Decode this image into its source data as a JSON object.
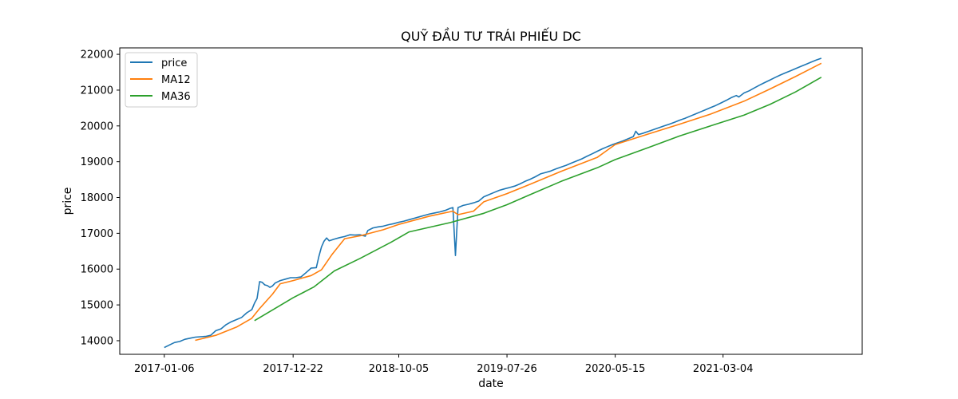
{
  "chart_data": {
    "type": "line",
    "title": "QUỸ ĐẦU TƯ TRÁI PHIẾU DC",
    "xlabel": "date",
    "ylabel": "price",
    "x_ticks": [
      "2017-01-06",
      "2017-12-22",
      "2018-10-05",
      "2019-07-26",
      "2020-05-15",
      "2021-03-04"
    ],
    "y_ticks": [
      14000,
      15000,
      16000,
      17000,
      18000,
      19000,
      20000,
      21000,
      22000
    ],
    "xlim": [
      "2016-09-07",
      "2022-03-17"
    ],
    "ylim": [
      13620,
      22180
    ],
    "legend_position": "upper-left",
    "series": [
      {
        "name": "price",
        "color": "#1f77b4",
        "points": [
          [
            "2017-01-06",
            13810
          ],
          [
            "2017-01-20",
            13880
          ],
          [
            "2017-02-03",
            13950
          ],
          [
            "2017-02-17",
            13980
          ],
          [
            "2017-03-03",
            14040
          ],
          [
            "2017-03-17",
            14070
          ],
          [
            "2017-03-31",
            14100
          ],
          [
            "2017-04-14",
            14110
          ],
          [
            "2017-04-28",
            14120
          ],
          [
            "2017-05-12",
            14150
          ],
          [
            "2017-05-26",
            14280
          ],
          [
            "2017-06-09",
            14330
          ],
          [
            "2017-06-23",
            14450
          ],
          [
            "2017-07-07",
            14530
          ],
          [
            "2017-07-21",
            14590
          ],
          [
            "2017-08-04",
            14650
          ],
          [
            "2017-08-18",
            14780
          ],
          [
            "2017-09-01",
            14870
          ],
          [
            "2017-09-08",
            15050
          ],
          [
            "2017-09-15",
            15180
          ],
          [
            "2017-09-22",
            15650
          ],
          [
            "2017-09-29",
            15630
          ],
          [
            "2017-10-06",
            15560
          ],
          [
            "2017-10-13",
            15540
          ],
          [
            "2017-10-20",
            15490
          ],
          [
            "2017-10-27",
            15530
          ],
          [
            "2017-11-03",
            15610
          ],
          [
            "2017-11-17",
            15680
          ],
          [
            "2017-12-01",
            15720
          ],
          [
            "2017-12-15",
            15760
          ],
          [
            "2017-12-29",
            15760
          ],
          [
            "2018-01-12",
            15780
          ],
          [
            "2018-01-26",
            15900
          ],
          [
            "2018-02-09",
            16030
          ],
          [
            "2018-02-23",
            16040
          ],
          [
            "2018-03-02",
            16350
          ],
          [
            "2018-03-09",
            16620
          ],
          [
            "2018-03-16",
            16780
          ],
          [
            "2018-03-23",
            16870
          ],
          [
            "2018-03-30",
            16790
          ],
          [
            "2018-04-13",
            16840
          ],
          [
            "2018-04-27",
            16880
          ],
          [
            "2018-05-11",
            16910
          ],
          [
            "2018-05-25",
            16960
          ],
          [
            "2018-06-08",
            16950
          ],
          [
            "2018-06-22",
            16960
          ],
          [
            "2018-07-06",
            16920
          ],
          [
            "2018-07-13",
            17080
          ],
          [
            "2018-07-27",
            17150
          ],
          [
            "2018-08-10",
            17180
          ],
          [
            "2018-08-24",
            17200
          ],
          [
            "2018-09-07",
            17240
          ],
          [
            "2018-09-21",
            17270
          ],
          [
            "2018-10-05",
            17310
          ],
          [
            "2018-10-19",
            17340
          ],
          [
            "2018-11-02",
            17380
          ],
          [
            "2018-11-16",
            17420
          ],
          [
            "2018-11-30",
            17460
          ],
          [
            "2018-12-14",
            17500
          ],
          [
            "2018-12-28",
            17540
          ],
          [
            "2019-01-11",
            17570
          ],
          [
            "2019-01-25",
            17600
          ],
          [
            "2019-02-08",
            17640
          ],
          [
            "2019-02-22",
            17700
          ],
          [
            "2019-03-01",
            17720
          ],
          [
            "2019-03-08",
            16380
          ],
          [
            "2019-03-15",
            17720
          ],
          [
            "2019-03-29",
            17780
          ],
          [
            "2019-04-12",
            17810
          ],
          [
            "2019-04-26",
            17850
          ],
          [
            "2019-05-10",
            17900
          ],
          [
            "2019-05-24",
            18020
          ],
          [
            "2019-06-07",
            18080
          ],
          [
            "2019-06-21",
            18140
          ],
          [
            "2019-07-05",
            18200
          ],
          [
            "2019-07-19",
            18240
          ],
          [
            "2019-08-02",
            18280
          ],
          [
            "2019-08-16",
            18320
          ],
          [
            "2019-08-30",
            18380
          ],
          [
            "2019-09-13",
            18450
          ],
          [
            "2019-09-27",
            18510
          ],
          [
            "2019-10-11",
            18580
          ],
          [
            "2019-10-25",
            18660
          ],
          [
            "2019-11-08",
            18700
          ],
          [
            "2019-11-22",
            18740
          ],
          [
            "2019-12-06",
            18800
          ],
          [
            "2019-12-20",
            18850
          ],
          [
            "2020-01-03",
            18900
          ],
          [
            "2020-01-17",
            18960
          ],
          [
            "2020-01-31",
            19020
          ],
          [
            "2020-02-14",
            19080
          ],
          [
            "2020-02-28",
            19150
          ],
          [
            "2020-03-13",
            19220
          ],
          [
            "2020-03-27",
            19290
          ],
          [
            "2020-04-10",
            19360
          ],
          [
            "2020-04-24",
            19420
          ],
          [
            "2020-05-08",
            19480
          ],
          [
            "2020-05-22",
            19530
          ],
          [
            "2020-06-05",
            19580
          ],
          [
            "2020-06-19",
            19640
          ],
          [
            "2020-07-03",
            19700
          ],
          [
            "2020-07-10",
            19850
          ],
          [
            "2020-07-17",
            19760
          ],
          [
            "2020-07-31",
            19800
          ],
          [
            "2020-08-14",
            19850
          ],
          [
            "2020-08-28",
            19900
          ],
          [
            "2020-09-11",
            19950
          ],
          [
            "2020-09-25",
            20000
          ],
          [
            "2020-10-09",
            20050
          ],
          [
            "2020-10-23",
            20100
          ],
          [
            "2020-11-06",
            20160
          ],
          [
            "2020-11-20",
            20210
          ],
          [
            "2020-12-04",
            20270
          ],
          [
            "2020-12-18",
            20330
          ],
          [
            "2021-01-01",
            20390
          ],
          [
            "2021-01-15",
            20450
          ],
          [
            "2021-01-29",
            20510
          ],
          [
            "2021-02-12",
            20570
          ],
          [
            "2021-02-26",
            20640
          ],
          [
            "2021-03-12",
            20710
          ],
          [
            "2021-03-26",
            20790
          ],
          [
            "2021-04-09",
            20850
          ],
          [
            "2021-04-16",
            20810
          ],
          [
            "2021-04-30",
            20920
          ],
          [
            "2021-05-14",
            20980
          ],
          [
            "2021-05-28",
            21060
          ],
          [
            "2021-06-11",
            21140
          ],
          [
            "2021-06-25",
            21210
          ],
          [
            "2021-07-09",
            21280
          ],
          [
            "2021-07-23",
            21350
          ],
          [
            "2021-08-06",
            21420
          ],
          [
            "2021-08-20",
            21480
          ],
          [
            "2021-09-03",
            21540
          ],
          [
            "2021-09-17",
            21600
          ],
          [
            "2021-10-01",
            21660
          ],
          [
            "2021-10-15",
            21720
          ],
          [
            "2021-10-29",
            21780
          ],
          [
            "2021-11-12",
            21840
          ],
          [
            "2021-11-26",
            21890
          ]
        ]
      },
      {
        "name": "MA12",
        "color": "#ff7f0e",
        "points": [
          [
            "2017-03-31",
            14010
          ],
          [
            "2017-05-26",
            14150
          ],
          [
            "2017-07-21",
            14380
          ],
          [
            "2017-08-31",
            14620
          ],
          [
            "2017-09-22",
            14900
          ],
          [
            "2017-10-27",
            15300
          ],
          [
            "2017-11-17",
            15590
          ],
          [
            "2017-12-22",
            15680
          ],
          [
            "2018-02-09",
            15820
          ],
          [
            "2018-03-09",
            15980
          ],
          [
            "2018-04-06",
            16400
          ],
          [
            "2018-05-11",
            16850
          ],
          [
            "2018-06-22",
            16930
          ],
          [
            "2018-08-24",
            17100
          ],
          [
            "2018-10-05",
            17250
          ],
          [
            "2018-12-28",
            17480
          ],
          [
            "2019-03-01",
            17620
          ],
          [
            "2019-03-15",
            17520
          ],
          [
            "2019-04-26",
            17620
          ],
          [
            "2019-05-24",
            17880
          ],
          [
            "2019-07-26",
            18110
          ],
          [
            "2019-09-27",
            18370
          ],
          [
            "2019-12-20",
            18730
          ],
          [
            "2020-03-27",
            19120
          ],
          [
            "2020-05-15",
            19480
          ],
          [
            "2020-08-14",
            19780
          ],
          [
            "2020-11-06",
            20050
          ],
          [
            "2021-01-29",
            20330
          ],
          [
            "2021-04-30",
            20690
          ],
          [
            "2021-07-09",
            21030
          ],
          [
            "2021-09-17",
            21380
          ],
          [
            "2021-11-26",
            21750
          ]
        ]
      },
      {
        "name": "MA36",
        "color": "#2ca02c",
        "points": [
          [
            "2017-09-08",
            14560
          ],
          [
            "2017-12-22",
            15200
          ],
          [
            "2018-02-16",
            15500
          ],
          [
            "2018-04-13",
            15950
          ],
          [
            "2018-06-22",
            16300
          ],
          [
            "2018-09-14",
            16750
          ],
          [
            "2018-11-02",
            17040
          ],
          [
            "2019-02-22",
            17300
          ],
          [
            "2019-05-24",
            17560
          ],
          [
            "2019-07-26",
            17800
          ],
          [
            "2019-09-27",
            18080
          ],
          [
            "2019-12-20",
            18450
          ],
          [
            "2020-03-27",
            18830
          ],
          [
            "2020-05-15",
            19060
          ],
          [
            "2020-08-14",
            19400
          ],
          [
            "2020-11-06",
            19720
          ],
          [
            "2021-01-29",
            20000
          ],
          [
            "2021-04-30",
            20300
          ],
          [
            "2021-07-09",
            20600
          ],
          [
            "2021-09-17",
            20950
          ],
          [
            "2021-11-26",
            21360
          ]
        ]
      }
    ]
  }
}
